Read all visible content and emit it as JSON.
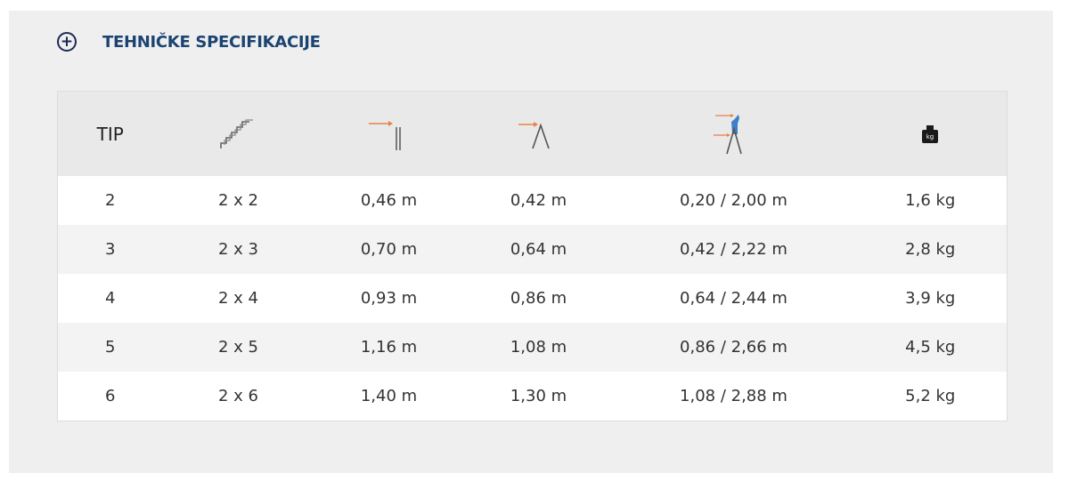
{
  "section": {
    "title": "TEHNIČKE SPECIFIKACIJE",
    "icon": "plus-circle-icon"
  },
  "table": {
    "headers": [
      {
        "label": "TIP"
      },
      {
        "icon": "stairs-icon"
      },
      {
        "icon": "folded-width-icon"
      },
      {
        "icon": "open-width-icon"
      },
      {
        "icon": "standing-height-icon"
      },
      {
        "icon": "weight-kg-icon",
        "icon_text": "kg"
      }
    ],
    "accent_colors": {
      "arrow": "#e8824a",
      "person": "#3f7fc8"
    },
    "rows": [
      [
        "2",
        "2 x 2",
        "0,46 m",
        "0,42 m",
        "0,20 / 2,00 m",
        "1,6 kg"
      ],
      [
        "3",
        "2 x 3",
        "0,70 m",
        "0,64 m",
        "0,42 / 2,22 m",
        "2,8 kg"
      ],
      [
        "4",
        "2 x 4",
        "0,93 m",
        "0,86 m",
        "0,64 / 2,44 m",
        "3,9 kg"
      ],
      [
        "5",
        "2 x 5",
        "1,16 m",
        "1,08 m",
        "0,86 / 2,66 m",
        "4,5 kg"
      ],
      [
        "6",
        "2 x 6",
        "1,40 m",
        "1,30 m",
        "1,08 / 2,88 m",
        "5,2 kg"
      ]
    ]
  }
}
